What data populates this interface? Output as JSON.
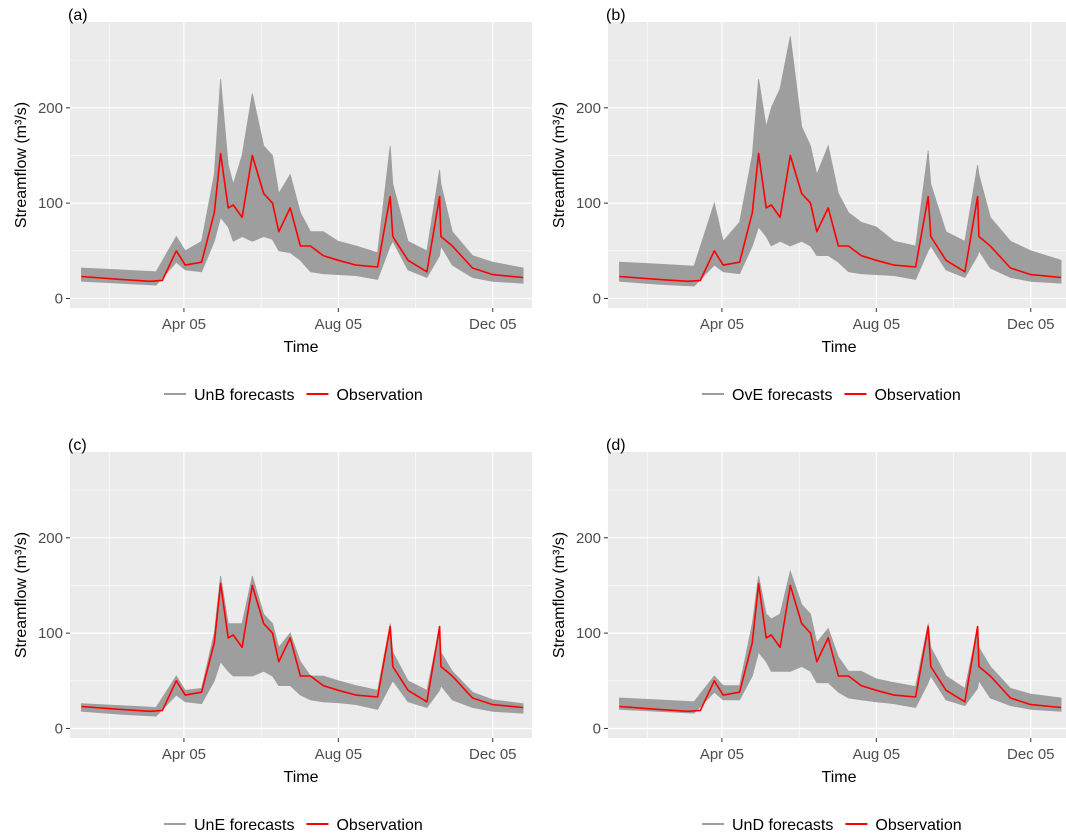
{
  "chart_data": [
    {
      "panel_label": "(a)",
      "type": "line",
      "xlabel": "Time",
      "ylabel": "Streamflow (m³/s)",
      "x_ticks": [
        "Apr 05",
        "Aug 05",
        "Dec 05"
      ],
      "y_ticks": [
        "0",
        "100",
        "200"
      ],
      "ylim": [
        -10,
        290
      ],
      "xlim": [
        "2005-01-01",
        "2006-01-01"
      ],
      "legend_position": "bottom",
      "legend": [
        "UnB forecasts",
        "Observation"
      ],
      "colors": {
        "forecast": "#9e9e9e",
        "observation": "#ff0000",
        "panel_bg": "#ebebeb",
        "grid": "#ffffff"
      },
      "series": [
        {
          "name": "UnB forecasts",
          "kind": "band",
          "x": [
            "2005-01-10",
            "2005-02-10",
            "2005-03-10",
            "2005-03-26",
            "2005-04-02",
            "2005-04-15",
            "2005-04-25",
            "2005-04-30",
            "2005-05-06",
            "2005-05-10",
            "2005-05-17",
            "2005-05-25",
            "2005-06-03",
            "2005-06-10",
            "2005-06-15",
            "2005-06-24",
            "2005-07-02",
            "2005-07-10",
            "2005-07-20",
            "2005-08-01",
            "2005-08-15",
            "2005-09-01",
            "2005-09-11",
            "2005-09-13",
            "2005-09-25",
            "2005-10-10",
            "2005-10-20",
            "2005-10-21",
            "2005-10-30",
            "2005-11-15",
            "2005-12-01",
            "2005-12-25"
          ],
          "low": [
            18,
            16,
            14,
            38,
            30,
            28,
            60,
            85,
            75,
            60,
            65,
            60,
            65,
            62,
            50,
            48,
            40,
            28,
            26,
            25,
            24,
            20,
            55,
            60,
            30,
            22,
            45,
            55,
            35,
            22,
            18,
            16
          ],
          "high": [
            32,
            30,
            28,
            65,
            50,
            60,
            130,
            230,
            140,
            120,
            150,
            215,
            160,
            150,
            110,
            130,
            90,
            70,
            70,
            60,
            55,
            48,
            160,
            120,
            60,
            50,
            135,
            120,
            70,
            45,
            38,
            32
          ]
        },
        {
          "name": "Observation",
          "kind": "line",
          "x": [
            "2005-01-10",
            "2005-02-10",
            "2005-03-05",
            "2005-03-15",
            "2005-03-26",
            "2005-04-02",
            "2005-04-15",
            "2005-04-25",
            "2005-04-30",
            "2005-05-06",
            "2005-05-10",
            "2005-05-17",
            "2005-05-25",
            "2005-06-03",
            "2005-06-10",
            "2005-06-15",
            "2005-06-24",
            "2005-07-02",
            "2005-07-10",
            "2005-07-20",
            "2005-08-01",
            "2005-08-15",
            "2005-09-01",
            "2005-09-11",
            "2005-09-13",
            "2005-09-25",
            "2005-10-10",
            "2005-10-20",
            "2005-10-21",
            "2005-10-30",
            "2005-11-15",
            "2005-12-01",
            "2005-12-25"
          ],
          "values": [
            23,
            20,
            18,
            19,
            50,
            35,
            38,
            90,
            152,
            95,
            98,
            85,
            150,
            110,
            100,
            70,
            95,
            55,
            55,
            45,
            40,
            35,
            33,
            107,
            65,
            40,
            28,
            107,
            65,
            55,
            32,
            25,
            22
          ]
        }
      ]
    },
    {
      "panel_label": "(b)",
      "type": "line",
      "xlabel": "Time",
      "ylabel": "Streamflow (m³/s)",
      "x_ticks": [
        "Apr 05",
        "Aug 05",
        "Dec 05"
      ],
      "y_ticks": [
        "0",
        "100",
        "200"
      ],
      "ylim": [
        -10,
        290
      ],
      "xlim": [
        "2005-01-01",
        "2006-01-01"
      ],
      "legend_position": "bottom",
      "legend": [
        "OvE forecasts",
        "Observation"
      ],
      "colors": {
        "forecast": "#9e9e9e",
        "observation": "#ff0000",
        "panel_bg": "#ebebeb",
        "grid": "#ffffff"
      },
      "series": [
        {
          "name": "OvE forecasts",
          "kind": "band",
          "x": [
            "2005-01-10",
            "2005-02-10",
            "2005-03-10",
            "2005-03-26",
            "2005-04-02",
            "2005-04-15",
            "2005-04-25",
            "2005-04-30",
            "2005-05-06",
            "2005-05-10",
            "2005-05-17",
            "2005-05-25",
            "2005-06-03",
            "2005-06-10",
            "2005-06-15",
            "2005-06-24",
            "2005-07-02",
            "2005-07-10",
            "2005-07-20",
            "2005-08-01",
            "2005-08-15",
            "2005-09-01",
            "2005-09-11",
            "2005-09-13",
            "2005-09-25",
            "2005-10-10",
            "2005-10-20",
            "2005-10-21",
            "2005-10-30",
            "2005-11-15",
            "2005-12-01",
            "2005-12-25"
          ],
          "low": [
            18,
            15,
            13,
            35,
            28,
            26,
            55,
            75,
            65,
            55,
            60,
            55,
            60,
            55,
            45,
            45,
            38,
            28,
            26,
            25,
            24,
            20,
            50,
            55,
            30,
            22,
            45,
            50,
            32,
            22,
            18,
            16
          ],
          "high": [
            38,
            36,
            34,
            100,
            60,
            80,
            150,
            230,
            180,
            200,
            220,
            275,
            180,
            160,
            130,
            160,
            110,
            90,
            80,
            75,
            60,
            55,
            155,
            120,
            70,
            60,
            140,
            130,
            85,
            60,
            50,
            40
          ]
        },
        {
          "name": "Observation",
          "kind": "line",
          "x": [
            "2005-01-10",
            "2005-02-10",
            "2005-03-05",
            "2005-03-15",
            "2005-03-26",
            "2005-04-02",
            "2005-04-15",
            "2005-04-25",
            "2005-04-30",
            "2005-05-06",
            "2005-05-10",
            "2005-05-17",
            "2005-05-25",
            "2005-06-03",
            "2005-06-10",
            "2005-06-15",
            "2005-06-24",
            "2005-07-02",
            "2005-07-10",
            "2005-07-20",
            "2005-08-01",
            "2005-08-15",
            "2005-09-01",
            "2005-09-11",
            "2005-09-13",
            "2005-09-25",
            "2005-10-10",
            "2005-10-20",
            "2005-10-21",
            "2005-10-30",
            "2005-11-15",
            "2005-12-01",
            "2005-12-25"
          ],
          "values": [
            23,
            20,
            18,
            19,
            50,
            35,
            38,
            90,
            152,
            95,
            98,
            85,
            150,
            110,
            100,
            70,
            95,
            55,
            55,
            45,
            40,
            35,
            33,
            107,
            65,
            40,
            28,
            107,
            65,
            55,
            32,
            25,
            22
          ]
        }
      ]
    },
    {
      "panel_label": "(c)",
      "type": "line",
      "xlabel": "Time",
      "ylabel": "Streamflow (m³/s)",
      "x_ticks": [
        "Apr 05",
        "Aug 05",
        "Dec 05"
      ],
      "y_ticks": [
        "0",
        "100",
        "200"
      ],
      "ylim": [
        -10,
        290
      ],
      "xlim": [
        "2005-01-01",
        "2006-01-01"
      ],
      "legend_position": "bottom",
      "legend": [
        "UnE forecasts",
        "Observation"
      ],
      "colors": {
        "forecast": "#9e9e9e",
        "observation": "#ff0000",
        "panel_bg": "#ebebeb",
        "grid": "#ffffff"
      },
      "series": [
        {
          "name": "UnE forecasts",
          "kind": "band",
          "x": [
            "2005-01-10",
            "2005-02-10",
            "2005-03-10",
            "2005-03-26",
            "2005-04-02",
            "2005-04-15",
            "2005-04-25",
            "2005-04-30",
            "2005-05-06",
            "2005-05-10",
            "2005-05-17",
            "2005-05-25",
            "2005-06-03",
            "2005-06-10",
            "2005-06-15",
            "2005-06-24",
            "2005-07-02",
            "2005-07-10",
            "2005-07-20",
            "2005-08-01",
            "2005-08-15",
            "2005-09-01",
            "2005-09-11",
            "2005-09-13",
            "2005-09-25",
            "2005-10-10",
            "2005-10-20",
            "2005-10-21",
            "2005-10-30",
            "2005-11-15",
            "2005-12-01",
            "2005-12-25"
          ],
          "low": [
            18,
            15,
            13,
            35,
            28,
            26,
            50,
            70,
            60,
            55,
            55,
            55,
            60,
            55,
            45,
            45,
            35,
            30,
            28,
            27,
            25,
            20,
            45,
            50,
            28,
            22,
            40,
            45,
            30,
            22,
            18,
            16
          ],
          "high": [
            26,
            24,
            22,
            55,
            40,
            42,
            100,
            160,
            110,
            110,
            110,
            160,
            120,
            110,
            85,
            100,
            70,
            55,
            55,
            50,
            45,
            40,
            110,
            80,
            50,
            40,
            105,
            80,
            60,
            38,
            30,
            26
          ]
        },
        {
          "name": "Observation",
          "kind": "line",
          "x": [
            "2005-01-10",
            "2005-02-10",
            "2005-03-05",
            "2005-03-15",
            "2005-03-26",
            "2005-04-02",
            "2005-04-15",
            "2005-04-25",
            "2005-04-30",
            "2005-05-06",
            "2005-05-10",
            "2005-05-17",
            "2005-05-25",
            "2005-06-03",
            "2005-06-10",
            "2005-06-15",
            "2005-06-24",
            "2005-07-02",
            "2005-07-10",
            "2005-07-20",
            "2005-08-01",
            "2005-08-15",
            "2005-09-01",
            "2005-09-11",
            "2005-09-13",
            "2005-09-25",
            "2005-10-10",
            "2005-10-20",
            "2005-10-21",
            "2005-10-30",
            "2005-11-15",
            "2005-12-01",
            "2005-12-25"
          ],
          "values": [
            23,
            20,
            18,
            19,
            50,
            35,
            38,
            90,
            152,
            95,
            98,
            85,
            150,
            110,
            100,
            70,
            95,
            55,
            55,
            45,
            40,
            35,
            33,
            107,
            65,
            40,
            28,
            107,
            65,
            55,
            32,
            25,
            22
          ]
        }
      ]
    },
    {
      "panel_label": "(d)",
      "type": "line",
      "xlabel": "Time",
      "ylabel": "Streamflow (m³/s)",
      "x_ticks": [
        "Apr 05",
        "Aug 05",
        "Dec 05"
      ],
      "y_ticks": [
        "0",
        "100",
        "200"
      ],
      "ylim": [
        -10,
        290
      ],
      "xlim": [
        "2005-01-01",
        "2006-01-01"
      ],
      "legend_position": "bottom",
      "legend": [
        "UnD forecasts",
        "Observation"
      ],
      "colors": {
        "forecast": "#9e9e9e",
        "observation": "#ff0000",
        "panel_bg": "#ebebeb",
        "grid": "#ffffff"
      },
      "series": [
        {
          "name": "UnD forecasts",
          "kind": "band",
          "x": [
            "2005-01-10",
            "2005-02-10",
            "2005-03-10",
            "2005-03-26",
            "2005-04-02",
            "2005-04-15",
            "2005-04-25",
            "2005-04-30",
            "2005-05-06",
            "2005-05-10",
            "2005-05-17",
            "2005-05-25",
            "2005-06-03",
            "2005-06-10",
            "2005-06-15",
            "2005-06-24",
            "2005-07-02",
            "2005-07-10",
            "2005-07-20",
            "2005-08-01",
            "2005-08-15",
            "2005-09-01",
            "2005-09-11",
            "2005-09-13",
            "2005-09-25",
            "2005-10-10",
            "2005-10-20",
            "2005-10-21",
            "2005-10-30",
            "2005-11-15",
            "2005-12-01",
            "2005-12-25"
          ],
          "low": [
            20,
            18,
            16,
            38,
            30,
            30,
            55,
            80,
            70,
            60,
            60,
            60,
            65,
            60,
            48,
            48,
            38,
            32,
            30,
            28,
            26,
            22,
            48,
            55,
            30,
            24,
            42,
            50,
            32,
            24,
            20,
            18
          ],
          "high": [
            32,
            30,
            28,
            55,
            45,
            45,
            110,
            160,
            120,
            115,
            120,
            165,
            130,
            120,
            90,
            105,
            75,
            60,
            60,
            52,
            48,
            44,
            110,
            85,
            55,
            42,
            105,
            85,
            65,
            42,
            36,
            32
          ]
        },
        {
          "name": "Observation",
          "kind": "line",
          "x": [
            "2005-01-10",
            "2005-02-10",
            "2005-03-05",
            "2005-03-15",
            "2005-03-26",
            "2005-04-02",
            "2005-04-15",
            "2005-04-25",
            "2005-04-30",
            "2005-05-06",
            "2005-05-10",
            "2005-05-17",
            "2005-05-25",
            "2005-06-03",
            "2005-06-10",
            "2005-06-15",
            "2005-06-24",
            "2005-07-02",
            "2005-07-10",
            "2005-07-20",
            "2005-08-01",
            "2005-08-15",
            "2005-09-01",
            "2005-09-11",
            "2005-09-13",
            "2005-09-25",
            "2005-10-10",
            "2005-10-20",
            "2005-10-21",
            "2005-10-30",
            "2005-11-15",
            "2005-12-01",
            "2005-12-25"
          ],
          "values": [
            23,
            20,
            18,
            19,
            50,
            35,
            38,
            90,
            152,
            95,
            98,
            85,
            150,
            110,
            100,
            70,
            95,
            55,
            55,
            45,
            40,
            35,
            33,
            107,
            65,
            40,
            28,
            107,
            65,
            55,
            32,
            25,
            22
          ]
        }
      ]
    }
  ]
}
